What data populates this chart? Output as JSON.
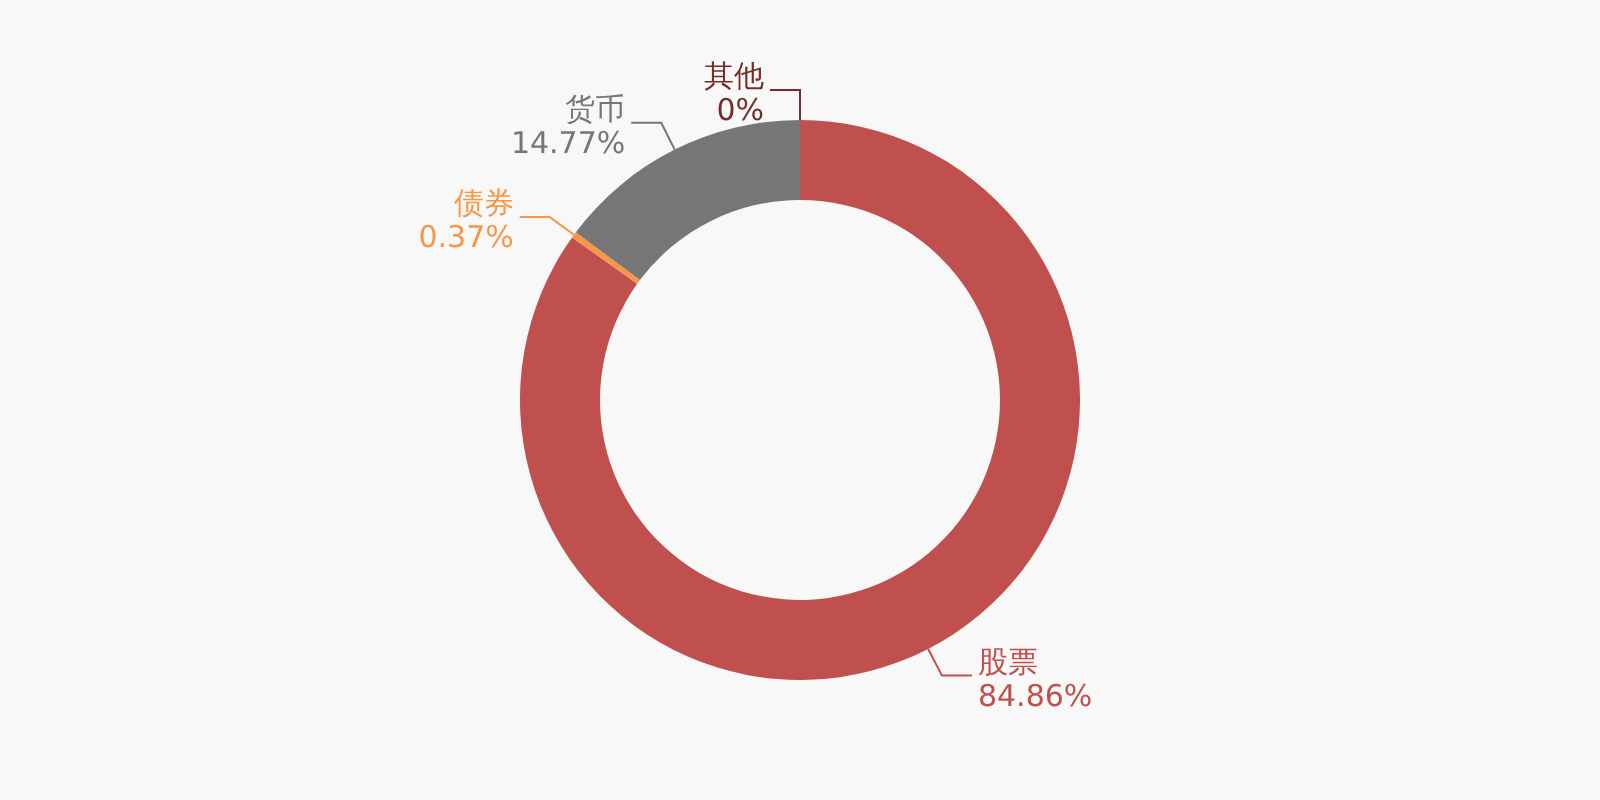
{
  "chart_data": {
    "type": "donut",
    "categories": [
      "股票",
      "债券",
      "货币",
      "其他"
    ],
    "values": [
      84.86,
      0.37,
      14.77,
      0
    ],
    "colors": [
      "#c0504d",
      "#f79646",
      "#767676",
      "#772c2a"
    ],
    "value_labels": [
      "84.86%",
      "0.37%",
      "14.77%",
      "0%"
    ],
    "legend": false
  }
}
